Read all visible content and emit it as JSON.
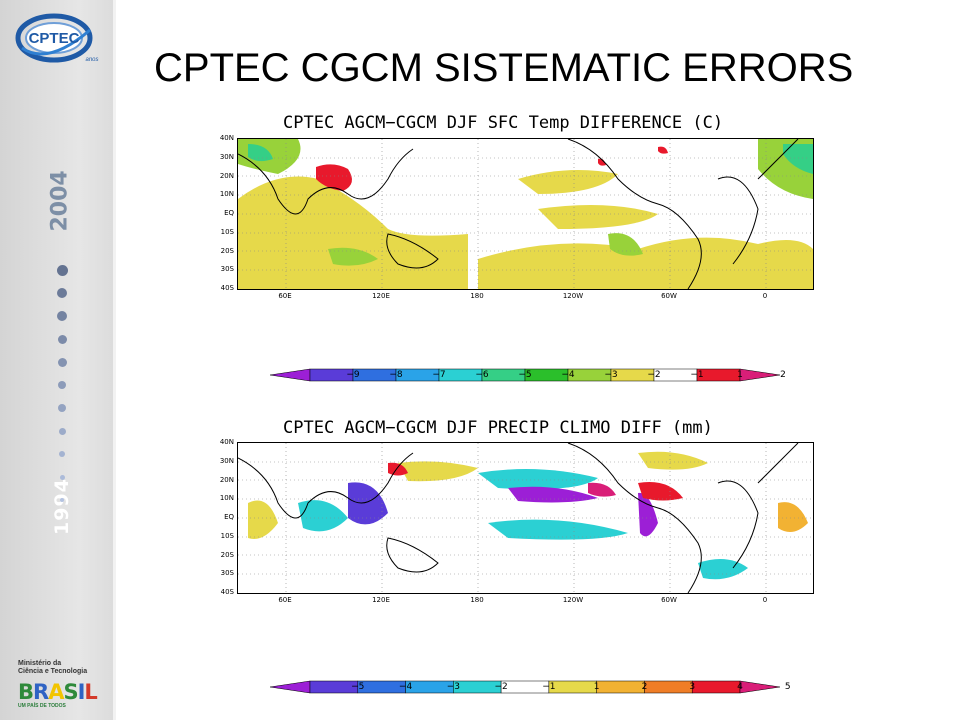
{
  "header": {
    "title": "CPTEC CGCM SISTEMATIC ERRORS"
  },
  "sidebar": {
    "logo_text": "CPTEC",
    "logo_sub": "anos",
    "year_start": "1994",
    "year_end": "2004",
    "ministry_line1": "Ministério da",
    "ministry_line2": "Ciência e Tecnologia",
    "brasil_letters": [
      "B",
      "R",
      "A",
      "S",
      "I",
      "L"
    ],
    "brasil_colors": [
      "#2f8a3b",
      "#2f63c4",
      "#f2c400",
      "#2f8a3b",
      "#2f63c4",
      "#d43a2a"
    ],
    "brasil_tagline": "UM PAÍS DE TODOS"
  },
  "panels": [
    {
      "title": "CPTEC AGCM−CGCM DJF SFC Temp DIFFERENCE (C)",
      "lat_labels": [
        "40N",
        "30N",
        "20N",
        "10N",
        "EQ",
        "10S",
        "20S",
        "30S",
        "40S"
      ],
      "lon_labels": [
        "60E",
        "120E",
        "180",
        "120W",
        "60W",
        "0"
      ]
    },
    {
      "title": "CPTEC AGCM−CGCM DJF PRECIP CLIMO DIFF (mm)",
      "lat_labels": [
        "40N",
        "30N",
        "20N",
        "10N",
        "EQ",
        "10S",
        "20S",
        "30S",
        "40S"
      ],
      "lon_labels": [
        "60E",
        "120E",
        "180",
        "120W",
        "60W",
        "0"
      ]
    }
  ],
  "colorbars": [
    {
      "labels": [
        "−9",
        "−8",
        "−7",
        "−6",
        "−5",
        "−4",
        "−3",
        "−2",
        "−1",
        "1",
        "2"
      ],
      "colors": [
        "#9c1fd6",
        "#5a3cd8",
        "#2f6fe0",
        "#2aa3e8",
        "#2bd0d3",
        "#35cf86",
        "#2bbf2b",
        "#98d23a",
        "#e6d94a",
        "#ffffff",
        "#e8192c",
        "#d91e78"
      ]
    },
    {
      "labels": [
        "−5",
        "−4",
        "−3",
        "−2",
        "−1",
        "1",
        "2",
        "3",
        "4",
        "5"
      ],
      "colors": [
        "#9c1fd6",
        "#5a3cd8",
        "#2f6fe0",
        "#2aa3e8",
        "#2bd0d3",
        "#ffffff",
        "#e6d94a",
        "#f2b233",
        "#ef7d26",
        "#e8192c",
        "#d91e78"
      ]
    }
  ]
}
